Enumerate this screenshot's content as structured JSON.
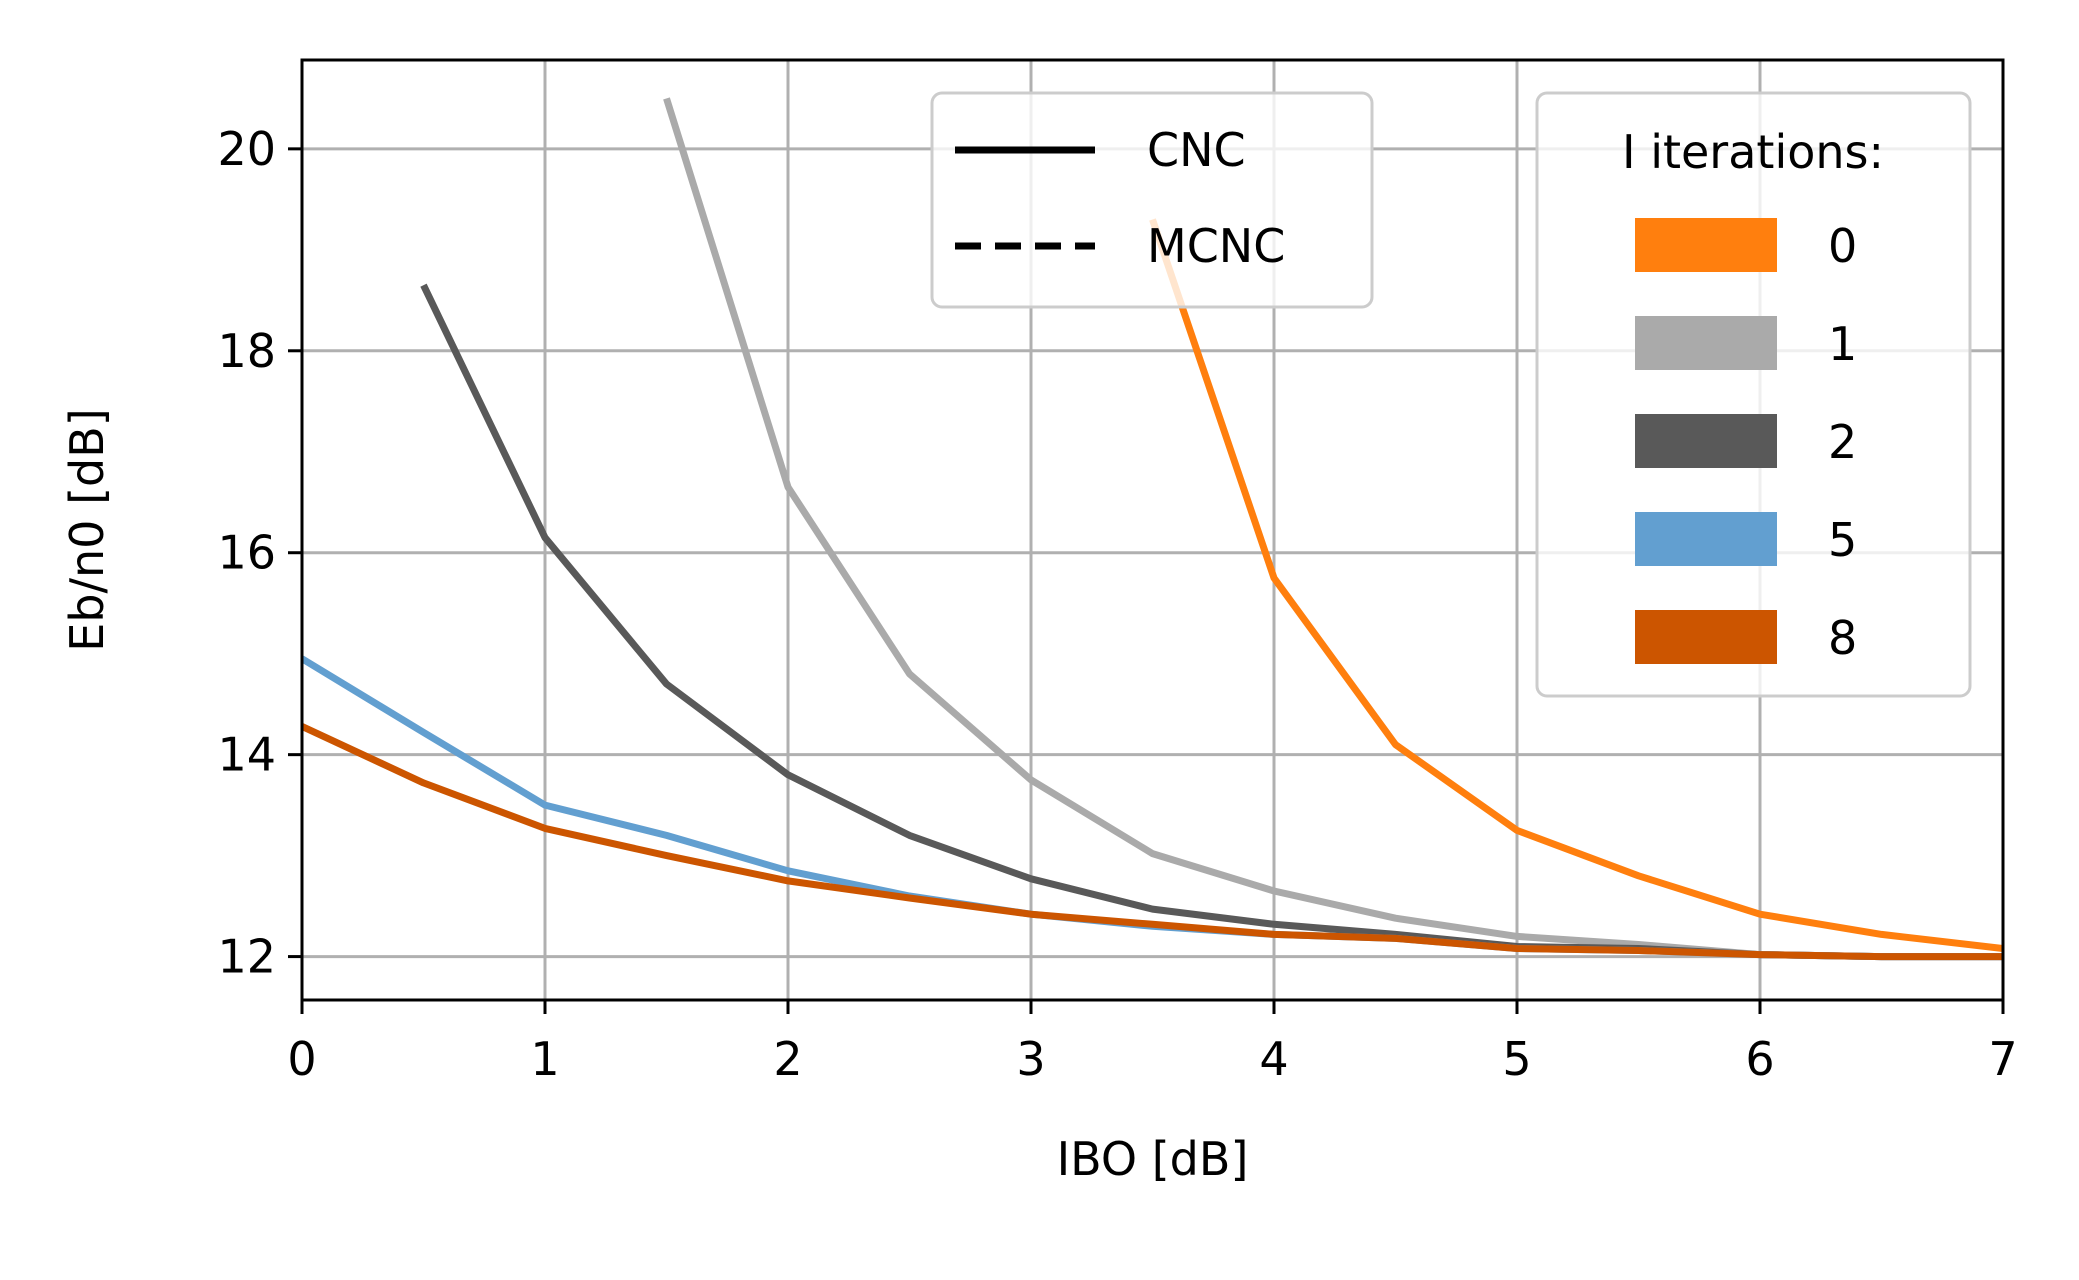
{
  "chart_data": {
    "type": "line",
    "xlabel": "IBO [dB]",
    "ylabel": "Eb/n0 [dB]",
    "xlim": [
      0,
      7
    ],
    "ylim": [
      11.57,
      20.88
    ],
    "xticks": [
      0,
      1,
      2,
      3,
      4,
      5,
      6,
      7
    ],
    "yticks": [
      12,
      14,
      16,
      18,
      20
    ],
    "xtick_labels": [
      "0",
      "1",
      "2",
      "3",
      "4",
      "5",
      "6",
      "7"
    ],
    "ytick_labels": [
      "12",
      "14",
      "16",
      "18",
      "20"
    ],
    "grid": true,
    "series": [
      {
        "name": "0",
        "color": "#ff7f0e",
        "style": "solid",
        "x": [
          3.5,
          4.0,
          4.5,
          5.0,
          5.5,
          6.0,
          6.5,
          7.0
        ],
        "y": [
          19.3,
          15.75,
          14.1,
          13.25,
          12.8,
          12.42,
          12.22,
          12.08
        ]
      },
      {
        "name": "1",
        "color": "#aaaaaa",
        "style": "solid",
        "x": [
          1.5,
          2.0,
          2.5,
          3.0,
          3.5,
          4.0,
          4.5,
          5.0,
          5.5,
          6.0,
          6.5,
          7.0
        ],
        "y": [
          20.5,
          16.65,
          14.8,
          13.75,
          13.02,
          12.65,
          12.38,
          12.2,
          12.12,
          12.02,
          12.0,
          12.0
        ]
      },
      {
        "name": "2",
        "color": "#595959",
        "style": "solid",
        "x": [
          0.5,
          1.0,
          1.5,
          2.0,
          2.5,
          3.0,
          3.5,
          4.0,
          4.5,
          5.0,
          5.5,
          6.0,
          6.5,
          7.0
        ],
        "y": [
          18.65,
          16.15,
          14.7,
          13.8,
          13.2,
          12.77,
          12.47,
          12.32,
          12.22,
          12.1,
          12.08,
          12.02,
          12.0,
          12.0
        ]
      },
      {
        "name": "5",
        "color": "#629fd0",
        "style": "solid",
        "x": [
          0.0,
          0.5,
          1.0,
          1.5,
          2.0,
          2.5,
          3.0,
          3.5,
          4.0,
          4.5,
          5.0,
          5.5,
          6.0,
          6.5,
          7.0
        ],
        "y": [
          14.95,
          14.22,
          13.5,
          13.2,
          12.85,
          12.6,
          12.42,
          12.3,
          12.22,
          12.18,
          12.08,
          12.06,
          12.02,
          12.0,
          12.0
        ]
      },
      {
        "name": "8",
        "color": "#cc5500",
        "style": "solid",
        "x": [
          0.0,
          0.5,
          1.0,
          1.5,
          2.0,
          2.5,
          3.0,
          3.5,
          4.0,
          4.5,
          5.0,
          5.5,
          6.0,
          6.5,
          7.0
        ],
        "y": [
          14.28,
          13.72,
          13.27,
          13.0,
          12.75,
          12.58,
          12.42,
          12.32,
          12.22,
          12.18,
          12.08,
          12.06,
          12.02,
          12.0,
          12.0
        ]
      }
    ],
    "legend_linestyle": {
      "placement": "upper center",
      "entries": [
        {
          "label": "CNC",
          "style": "solid"
        },
        {
          "label": "MCNC",
          "style": "dashed"
        }
      ]
    },
    "legend_iterations": {
      "placement": "upper right",
      "title": "I iterations:",
      "entries": [
        {
          "label": "0",
          "color": "#ff7f0e"
        },
        {
          "label": "1",
          "color": "#aaaaaa"
        },
        {
          "label": "2",
          "color": "#595959"
        },
        {
          "label": "5",
          "color": "#629fd0"
        },
        {
          "label": "8",
          "color": "#cc5500"
        }
      ]
    }
  }
}
